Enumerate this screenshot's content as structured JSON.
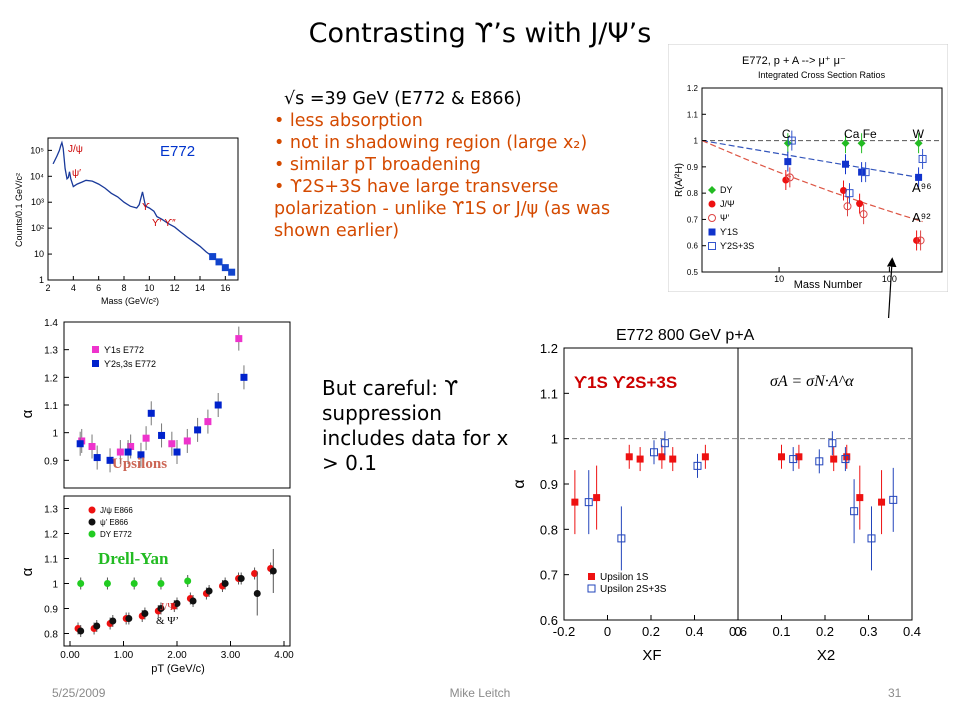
{
  "slide": {
    "title": "Contrasting ϒ’s with J/Ψ’s",
    "bullets_head": "√s =39 GeV (E772 & E866)",
    "bullets": [
      "• less absorption",
      "• not in shadowing region (large x₂)",
      "• similar pT broadening",
      "• ϒ2S+3S have large transverse polarization - unlike ϒ1S or J/ψ (as was shown earlier)"
    ],
    "careful_note": "But careful: ϒ suppression includes data for x₂ > 0.1",
    "footer_date": "5/25/2009",
    "footer_author": "Mike Leitch",
    "footer_page": "31"
  },
  "chart_data": [
    {
      "id": "mass-spectrum",
      "type": "line",
      "label": "E772",
      "xlabel": "Mass (GeV/c²)",
      "ylabel": "Counts/0.1 GeV/c²",
      "xlim": [
        2,
        17
      ],
      "ylim": [
        1,
        300000
      ],
      "yscale": "log",
      "x_ticks": [
        "2",
        "4",
        "6",
        "8",
        "10",
        "12",
        "14",
        "16"
      ],
      "y_ticks": [
        "1",
        "10",
        "10²",
        "10³",
        "10⁴",
        "10⁵"
      ],
      "peak_labels": [
        "J/ψ",
        "ψ′",
        "ϒ",
        "ϒ′ ϒ″"
      ],
      "series": [
        {
          "x": [
            2.4,
            2.7,
            2.9,
            3.0,
            3.1,
            3.2,
            3.35,
            3.5,
            3.6,
            3.7,
            3.8,
            4.0,
            4.3,
            4.7,
            5.0,
            5.5,
            6.0,
            6.5,
            7.0,
            7.5,
            8.0,
            8.5,
            9.0,
            9.2,
            9.46,
            9.7,
            10.0,
            10.36,
            10.6,
            11.0,
            11.5,
            12.0,
            12.5,
            13.0,
            13.5,
            14.0,
            14.5,
            15.0,
            15.5,
            16.0,
            16.5
          ],
          "y": [
            30000,
            60000,
            100000,
            150000,
            200000,
            120000,
            20000,
            8000,
            9000,
            15000,
            8000,
            4000,
            5000,
            6000,
            7000,
            6500,
            5000,
            3500,
            2200,
            1600,
            1000,
            700,
            600,
            800,
            2500,
            700,
            600,
            450,
            280,
            220,
            150,
            110,
            70,
            45,
            30,
            20,
            12,
            8,
            5,
            3,
            2
          ]
        }
      ]
    },
    {
      "id": "cross-section-ratios",
      "type": "scatter",
      "title": "E772, p + A --> μ⁺ μ⁻",
      "subtitle": "Integrated Cross Section Ratios",
      "xlabel": "Mass Number",
      "ylabel": "R(A/²H)",
      "xscale": "log",
      "xlim": [
        2,
        300
      ],
      "ylim": [
        0.5,
        1.2
      ],
      "x_ticks": [
        "10",
        "100"
      ],
      "y_ticks": [
        "0.5",
        "0.6",
        "0.7",
        "0.8",
        "0.9",
        "1",
        "1.1",
        "1.2"
      ],
      "nuclei": [
        "C",
        "Ca Fe",
        "W"
      ],
      "fit_labels": [
        "A⁹⁶",
        "A⁹²"
      ],
      "series": [
        {
          "name": "DY",
          "x": [
            12,
            40,
            56,
            184
          ],
          "y": [
            0.99,
            0.99,
            0.99,
            0.99
          ]
        },
        {
          "name": "J/Ψ",
          "x": [
            12,
            40,
            56,
            184
          ],
          "y": [
            0.85,
            0.81,
            0.76,
            0.62
          ]
        },
        {
          "name": "Ψ’",
          "x": [
            12,
            40,
            56,
            184
          ],
          "y": [
            0.86,
            0.75,
            0.72,
            0.62
          ]
        },
        {
          "name": "ϒ1S",
          "x": [
            12,
            40,
            56,
            184
          ],
          "y": [
            0.92,
            0.91,
            0.88,
            0.86
          ]
        },
        {
          "name": "ϒ2S+3S",
          "x": [
            12,
            40,
            56,
            184
          ],
          "y": [
            1.0,
            0.8,
            0.88,
            0.93
          ]
        }
      ]
    },
    {
      "id": "alpha-upsilons-pt",
      "type": "scatter",
      "label": "Upsilons",
      "ylabel": "α",
      "xlim": [
        0,
        4
      ],
      "ylim": [
        0.8,
        1.4
      ],
      "y_ticks": [
        "0.9",
        "1",
        "1.1",
        "1.2",
        "1.3",
        "1.4"
      ],
      "series": [
        {
          "name": "ϒ1s E772",
          "x": [
            0.15,
            0.35,
            0.9,
            1.1,
            1.4,
            1.9,
            2.2,
            2.6,
            3.2
          ],
          "y": [
            0.97,
            0.95,
            0.93,
            0.95,
            0.98,
            0.96,
            0.97,
            1.04,
            1.34
          ]
        },
        {
          "name": "ϒ2s,3s E772",
          "x": [
            0.12,
            0.45,
            0.7,
            1.05,
            1.3,
            1.5,
            1.7,
            2.0,
            2.4,
            2.8,
            3.3
          ],
          "y": [
            0.96,
            0.91,
            0.9,
            0.93,
            0.92,
            1.07,
            0.99,
            0.93,
            1.01,
            1.1,
            1.2
          ]
        }
      ]
    },
    {
      "id": "alpha-jpsi-pt",
      "type": "scatter",
      "label": "Drell-Yan",
      "extra_labels": [
        "J/Ψ",
        "& Ψ’"
      ],
      "xlabel": "pT (GeV/c)",
      "ylabel": "α",
      "xlim": [
        0,
        4
      ],
      "ylim": [
        0.75,
        1.35
      ],
      "x_ticks": [
        "0.00",
        "1.00",
        "2.00",
        "3.00",
        "4.00"
      ],
      "y_ticks": [
        "0.8",
        "0.9",
        "1",
        "1.1",
        "1.2",
        "1.3"
      ],
      "series": [
        {
          "name": "J/ψ E866",
          "x": [
            0.15,
            0.45,
            0.75,
            1.05,
            1.35,
            1.65,
            1.95,
            2.25,
            2.55,
            2.85,
            3.15,
            3.45,
            3.75
          ],
          "y": [
            0.82,
            0.82,
            0.84,
            0.86,
            0.87,
            0.89,
            0.91,
            0.94,
            0.96,
            0.99,
            1.02,
            1.04,
            1.06
          ]
        },
        {
          "name": "ψ’ E866",
          "x": [
            0.2,
            0.5,
            0.8,
            1.1,
            1.4,
            1.7,
            2.0,
            2.3,
            2.6,
            2.9,
            3.2,
            3.5,
            3.8
          ],
          "y": [
            0.81,
            0.83,
            0.85,
            0.86,
            0.88,
            0.9,
            0.92,
            0.93,
            0.97,
            1.0,
            1.02,
            0.96,
            1.05
          ]
        },
        {
          "name": "DY E772",
          "x": [
            0.2,
            0.7,
            1.2,
            1.7,
            2.2
          ],
          "y": [
            1.0,
            1.0,
            1.0,
            1.0,
            1.01
          ]
        }
      ]
    },
    {
      "id": "alpha-xf-x2",
      "type": "scatter",
      "title": "E772 800 GeV p+A",
      "labels": [
        "ϒ1S ϒ2S+3S",
        "σA = σN·A^α"
      ],
      "ylabel": "α",
      "ylim": [
        0.6,
        1.2
      ],
      "y_ticks": [
        "0.6",
        "0.7",
        "0.8",
        "0.9",
        "1",
        "1.1",
        "1.2"
      ],
      "panels": [
        {
          "xlabel": "XF",
          "xlim": [
            -0.2,
            0.6
          ],
          "x_ticks": [
            "-0.2",
            "0",
            "0.2",
            "0.4",
            "0.6"
          ],
          "series": [
            {
              "name": "Upsilon 1S",
              "x": [
                -0.15,
                -0.05,
                0.1,
                0.15,
                0.25,
                0.3,
                0.45
              ],
              "y": [
                0.86,
                0.87,
                0.96,
                0.955,
                0.96,
                0.955,
                0.96
              ]
            },
            {
              "name": "Upsilon 2S+3S",
              "x": [
                -0.1,
                0.05,
                0.2,
                0.25,
                0.4
              ],
              "y": [
                0.86,
                0.78,
                0.97,
                0.99,
                0.94
              ]
            }
          ]
        },
        {
          "xlabel": "X2",
          "xlim": [
            0,
            0.4
          ],
          "x_ticks": [
            "0",
            "0.1",
            "0.2",
            "0.3",
            "0.4"
          ],
          "series": [
            {
              "name": "Upsilon 1S",
              "x": [
                0.1,
                0.14,
                0.22,
                0.25,
                0.28,
                0.33
              ],
              "y": [
                0.96,
                0.96,
                0.955,
                0.96,
                0.87,
                0.86
              ]
            },
            {
              "name": "Upsilon 2S+3S",
              "x": [
                0.12,
                0.18,
                0.21,
                0.24,
                0.26,
                0.3,
                0.35
              ],
              "y": [
                0.955,
                0.95,
                0.99,
                0.955,
                0.84,
                0.78,
                0.865
              ]
            }
          ]
        }
      ]
    }
  ]
}
